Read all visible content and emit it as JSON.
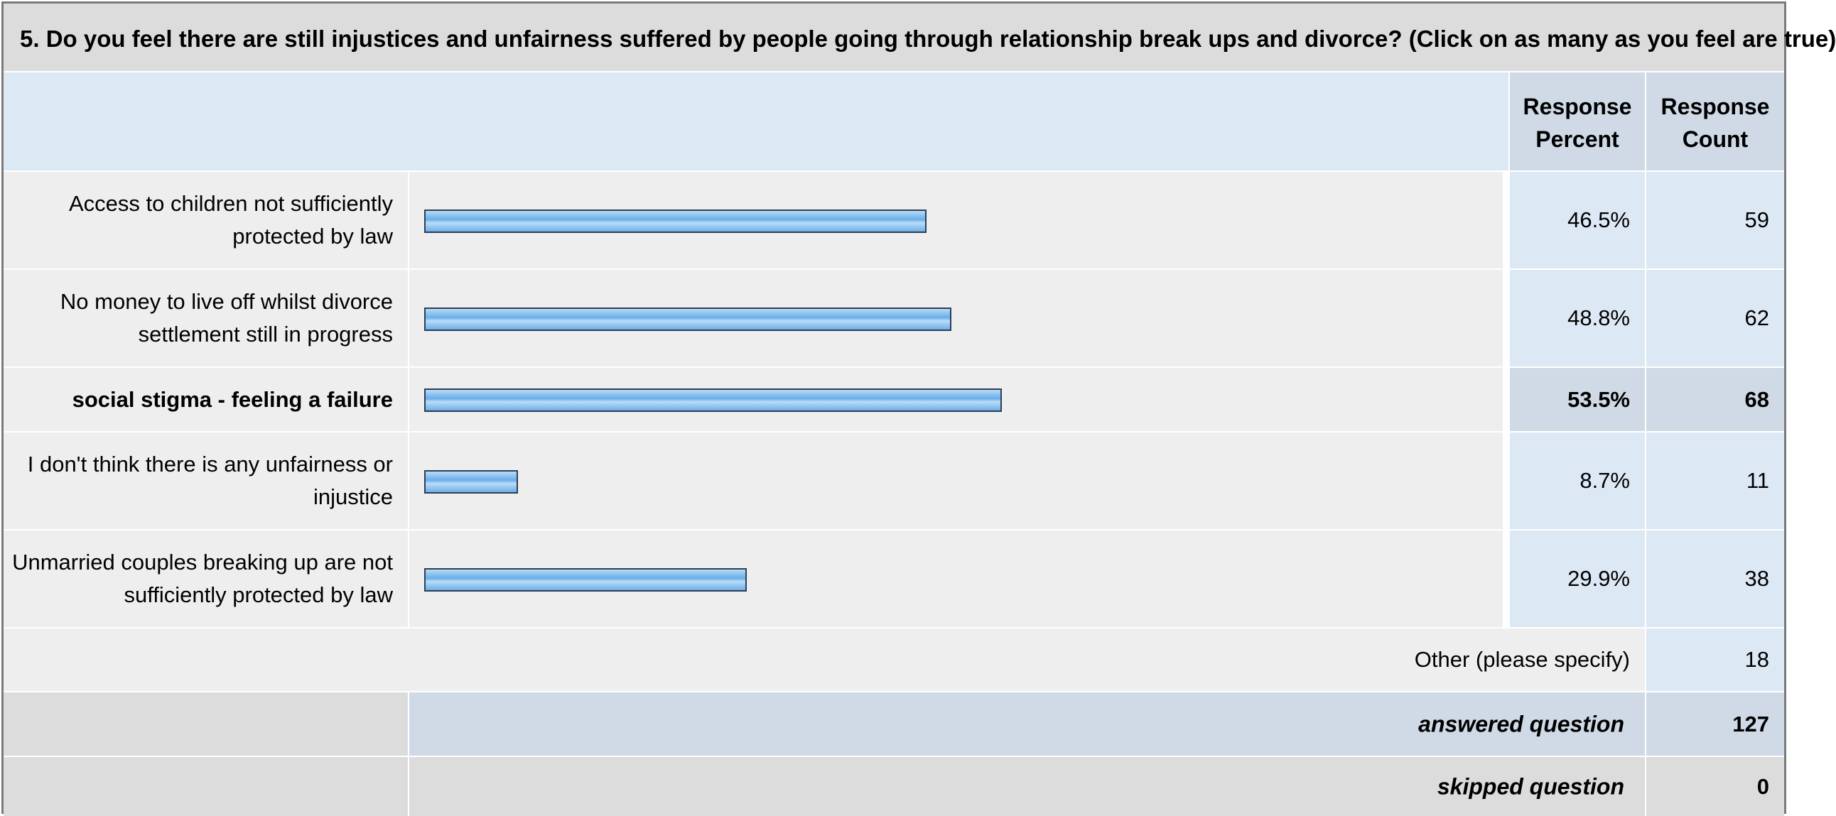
{
  "question": "5. Do you feel there are still injustices and unfairness suffered by people going through relationship break ups and divorce? (Click on as many as you feel are true)",
  "columns": {
    "percent": "Response Percent",
    "count": "Response Count"
  },
  "rows": [
    {
      "label": "Access to children not sufficiently protected by law",
      "percent": "46.5%",
      "count": "59",
      "highlighted": false
    },
    {
      "label": "No money to live off whilst divorce settlement still in progress",
      "percent": "48.8%",
      "count": "62",
      "highlighted": false
    },
    {
      "label": "social stigma - feeling a failure",
      "percent": "53.5%",
      "count": "68",
      "highlighted": true
    },
    {
      "label": "I don't think there is any unfairness or injustice",
      "percent": "8.7%",
      "count": "11",
      "highlighted": false
    },
    {
      "label": "Unmarried couples breaking up are not sufficiently protected by law",
      "percent": "29.9%",
      "count": "38",
      "highlighted": false
    }
  ],
  "other": {
    "label": "Other (please specify)",
    "count": "18"
  },
  "summary": {
    "answered_label": "answered question",
    "answered_count": "127",
    "skipped_label": "skipped question",
    "skipped_count": "0"
  },
  "chart_data": {
    "type": "bar",
    "orientation": "horizontal",
    "categories": [
      "Access to children not sufficiently protected by law",
      "No money to live off whilst divorce settlement still in progress",
      "social stigma - feeling a failure",
      "I don't think there is any unfairness or injustice",
      "Unmarried couples breaking up are not sufficiently protected by law"
    ],
    "values": [
      46.5,
      48.8,
      53.5,
      8.7,
      29.9
    ],
    "counts": [
      59,
      62,
      68,
      11,
      38
    ],
    "xlim": [
      0,
      100
    ],
    "grid": false,
    "bar_color": "#8dc3ef",
    "bar_border_color": "#2c3f56"
  }
}
